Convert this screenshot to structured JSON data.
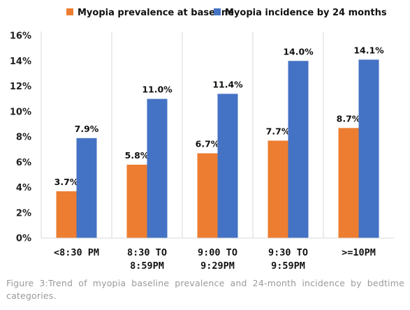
{
  "chart_data": {
    "type": "bar",
    "categories": [
      [
        "<8:30 PM"
      ],
      [
        "8:30 TO",
        "8:59PM"
      ],
      [
        "9:00 TO",
        "9:29PM"
      ],
      [
        "9:30 TO",
        "9:59PM"
      ],
      [
        ">=10PM"
      ]
    ],
    "series": [
      {
        "name": "Myopia prevalence at baseline",
        "color": "#ED7D31",
        "values": [
          3.7,
          5.8,
          6.7,
          7.7,
          8.7
        ],
        "labels": [
          "3.7%",
          "5.8%",
          "6.7%",
          "7.7%",
          "8.7%"
        ]
      },
      {
        "name": "Myopia incidence by 24 months",
        "color": "#4472C4",
        "values": [
          7.9,
          11.0,
          11.4,
          14.0,
          14.1
        ],
        "labels": [
          "7.9%",
          "11.0%",
          "11.4%",
          "14.0%",
          "14.1%"
        ]
      }
    ],
    "ylim": [
      0,
      16
    ],
    "yticks": [
      0,
      2,
      4,
      6,
      8,
      10,
      12,
      14,
      16
    ],
    "ytick_labels": [
      "0%",
      "2%",
      "4%",
      "6%",
      "8%",
      "10%",
      "12%",
      "14%",
      "16%"
    ],
    "xlabel": "",
    "ylabel": "",
    "grid": "vertical separators between categories",
    "legend_position": "top-center"
  },
  "caption": "Figure 3:Trend of myopia baseline prevalence and 24-month incidence by bedtime categories."
}
